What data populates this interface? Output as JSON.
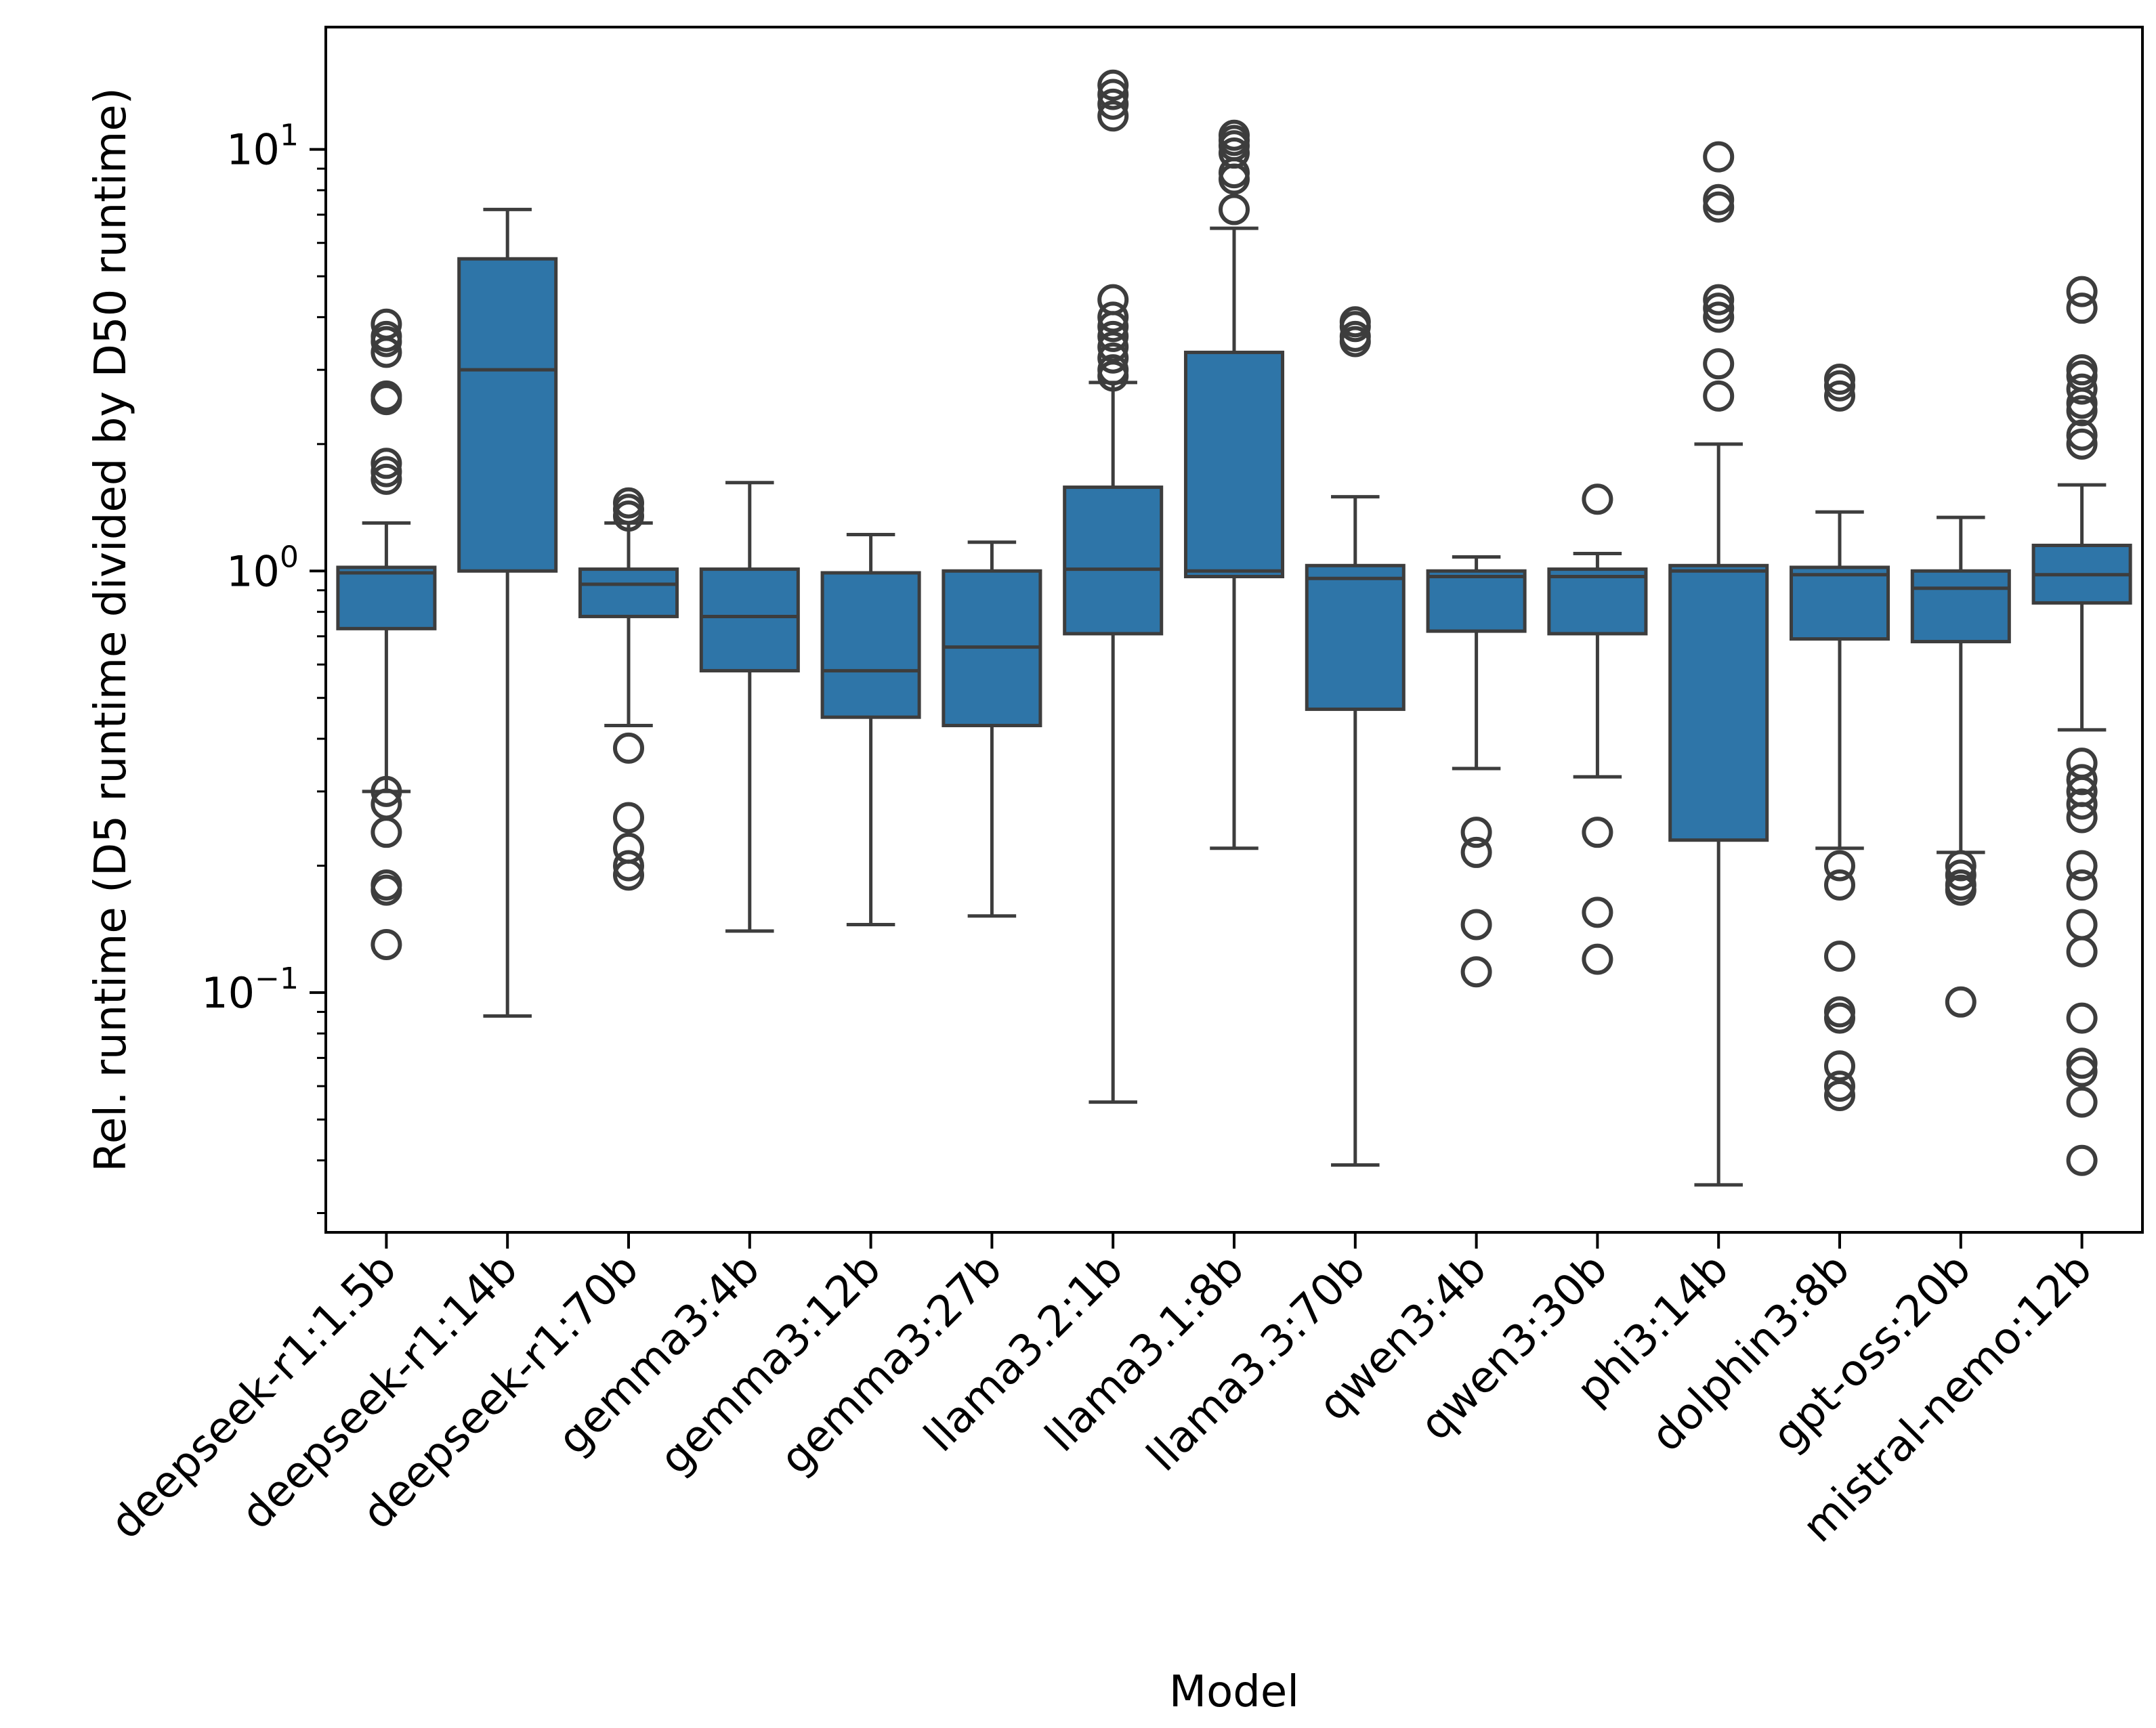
{
  "chart_data": {
    "type": "box",
    "xlabel": "Model",
    "ylabel": "Rel. runtime (D5 runtime divided by D50 runtime)",
    "yscale": "log",
    "ylim": [
      0.027,
      19.5
    ],
    "y_tick_labels": [
      {
        "value": 0.1,
        "base": "10",
        "exp": "−1"
      },
      {
        "value": 1,
        "base": "10",
        "exp": "0"
      },
      {
        "value": 10,
        "base": "10",
        "exp": "1"
      }
    ],
    "box_color": "#2e75a8",
    "line_color": "#3d3d3d",
    "categories": [
      "deepseek-r1:1.5b",
      "deepseek-r1:14b",
      "deepseek-r1:70b",
      "gemma3:4b",
      "gemma3:12b",
      "gemma3:27b",
      "llama3.2:1b",
      "llama3.1:8b",
      "llama3.3:70b",
      "qwen3:4b",
      "qwen3:30b",
      "phi3:14b",
      "dolphin3:8b",
      "gpt-oss:20b",
      "mistral-nemo:12b"
    ],
    "boxes": [
      {
        "name": "deepseek-r1:1.5b",
        "whislo": 0.3,
        "q1": 0.73,
        "med": 0.99,
        "q3": 1.02,
        "whishi": 1.3,
        "fliers": [
          0.13,
          0.175,
          0.18,
          0.24,
          0.28,
          0.3,
          1.65,
          1.72,
          1.8,
          2.55,
          2.6,
          3.3,
          3.5,
          3.6,
          3.85
        ]
      },
      {
        "name": "deepseek-r1:14b",
        "whislo": 0.088,
        "q1": 1.0,
        "med": 3.0,
        "q3": 5.5,
        "whishi": 7.2,
        "fliers": []
      },
      {
        "name": "deepseek-r1:70b",
        "whislo": 0.43,
        "q1": 0.78,
        "med": 0.93,
        "q3": 1.01,
        "whishi": 1.3,
        "fliers": [
          0.19,
          0.2,
          0.22,
          0.26,
          0.38,
          1.35,
          1.4,
          1.45
        ]
      },
      {
        "name": "gemma3:4b",
        "whislo": 0.14,
        "q1": 0.58,
        "med": 0.78,
        "q3": 1.01,
        "whishi": 1.62,
        "fliers": []
      },
      {
        "name": "gemma3:12b",
        "whislo": 0.145,
        "q1": 0.45,
        "med": 0.58,
        "q3": 0.99,
        "whishi": 1.22,
        "fliers": []
      },
      {
        "name": "gemma3:27b",
        "whislo": 0.152,
        "q1": 0.43,
        "med": 0.66,
        "q3": 1.0,
        "whishi": 1.17,
        "fliers": []
      },
      {
        "name": "llama3.2:1b",
        "whislo": 0.055,
        "q1": 0.71,
        "med": 1.01,
        "q3": 1.58,
        "whishi": 2.8,
        "fliers": [
          2.9,
          3.0,
          3.2,
          3.4,
          3.6,
          3.8,
          4.0,
          4.4,
          12.0,
          12.8,
          13.5,
          14.2
        ]
      },
      {
        "name": "llama3.1:8b",
        "whislo": 0.22,
        "q1": 0.97,
        "med": 1.0,
        "q3": 3.3,
        "whishi": 6.5,
        "fliers": [
          7.2,
          8.5,
          8.8,
          9.8,
          10.2,
          10.5,
          10.8
        ]
      },
      {
        "name": "llama3.3:70b",
        "whislo": 0.039,
        "q1": 0.47,
        "med": 0.96,
        "q3": 1.03,
        "whishi": 1.5,
        "fliers": [
          3.5,
          3.6,
          3.8,
          3.9
        ]
      },
      {
        "name": "qwen3:4b",
        "whislo": 0.34,
        "q1": 0.72,
        "med": 0.97,
        "q3": 1.0,
        "whishi": 1.08,
        "fliers": [
          0.112,
          0.145,
          0.215,
          0.24
        ]
      },
      {
        "name": "qwen3:30b",
        "whislo": 0.325,
        "q1": 0.71,
        "med": 0.97,
        "q3": 1.01,
        "whishi": 1.1,
        "fliers": [
          0.12,
          0.155,
          0.24,
          1.48
        ]
      },
      {
        "name": "phi3:14b",
        "whislo": 0.035,
        "q1": 0.23,
        "med": 1.0,
        "q3": 1.03,
        "whishi": 2.0,
        "fliers": [
          2.6,
          3.1,
          4.0,
          4.2,
          4.4,
          7.3,
          7.6,
          9.6
        ]
      },
      {
        "name": "dolphin3:8b",
        "whislo": 0.22,
        "q1": 0.69,
        "med": 0.98,
        "q3": 1.02,
        "whishi": 1.38,
        "fliers": [
          0.057,
          0.06,
          0.067,
          0.087,
          0.09,
          0.122,
          0.18,
          0.2,
          2.6,
          2.75,
          2.85
        ]
      },
      {
        "name": "gpt-oss:20b",
        "whislo": 0.215,
        "q1": 0.68,
        "med": 0.91,
        "q3": 1.0,
        "whishi": 1.34,
        "fliers": [
          0.095,
          0.175,
          0.18,
          0.19,
          0.2
        ]
      },
      {
        "name": "mistral-nemo:12b",
        "whislo": 0.42,
        "q1": 0.84,
        "med": 0.98,
        "q3": 1.15,
        "whishi": 1.6,
        "fliers": [
          0.04,
          0.055,
          0.065,
          0.068,
          0.087,
          0.125,
          0.145,
          0.18,
          0.2,
          0.26,
          0.28,
          0.3,
          0.32,
          0.35,
          2.0,
          2.1,
          2.4,
          2.5,
          2.7,
          2.9,
          3.0,
          4.2,
          4.6
        ]
      }
    ]
  }
}
